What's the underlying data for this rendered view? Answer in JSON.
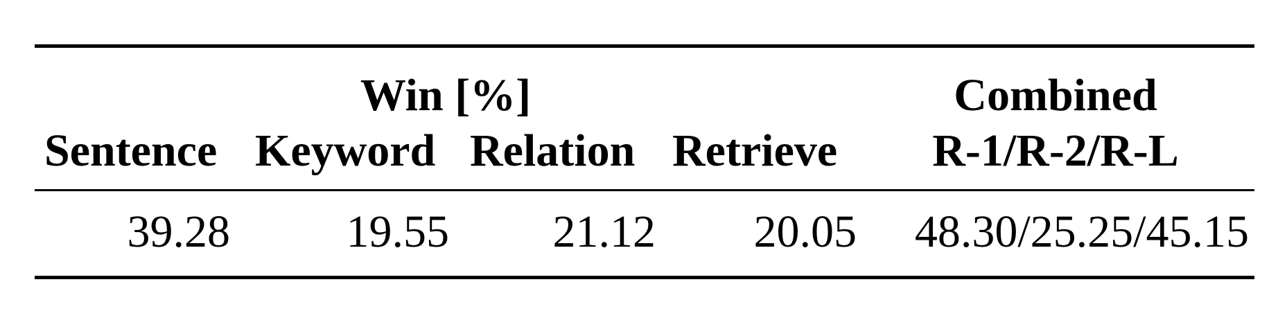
{
  "table": {
    "group_headers": {
      "win": "Win [%]",
      "combined": "Combined"
    },
    "columns": [
      "Sentence",
      "Keyword",
      "Relation",
      "Retrieve",
      "R-1/R-2/R-L"
    ],
    "rows": [
      [
        "39.28",
        "19.55",
        "21.12",
        "20.05",
        "48.30/25.25/45.15"
      ]
    ]
  }
}
